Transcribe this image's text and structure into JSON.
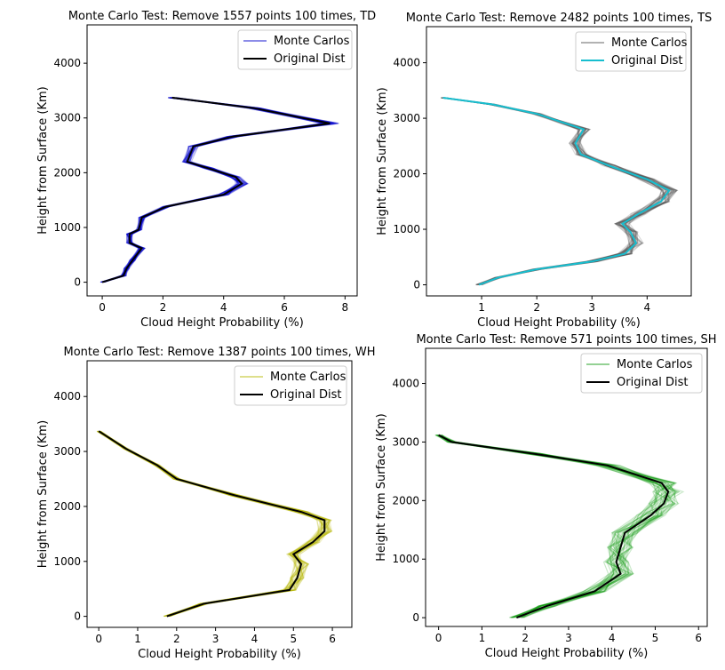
{
  "chart_data": [
    {
      "type": "line",
      "title": "Monte Carlo Test: Remove 1557 points 100 times, TD",
      "xlabel": "Cloud Height Probability (%)",
      "ylabel": "Height from Surface (Km)",
      "xlim": [
        -0.5,
        8.4
      ],
      "ylim": [
        -250,
        4700
      ],
      "xticks": [
        0,
        2,
        4,
        6,
        8
      ],
      "yticks": [
        0,
        1000,
        2000,
        3000,
        4000
      ],
      "grid": false,
      "legend_position": "top-right",
      "series": [
        {
          "name": "Monte Carlos",
          "color": "#0000cc",
          "role": "ensemble",
          "spread": 0.18
        },
        {
          "name": "Original Dist",
          "color": "#000000",
          "role": "original",
          "points": [
            [
              0,
              0
            ],
            [
              0.7,
              120
            ],
            [
              0.8,
              250
            ],
            [
              1.0,
              400
            ],
            [
              1.3,
              620
            ],
            [
              0.9,
              720
            ],
            [
              0.9,
              880
            ],
            [
              1.2,
              960
            ],
            [
              1.3,
              1180
            ],
            [
              2.1,
              1380
            ],
            [
              4.0,
              1600
            ],
            [
              4.6,
              1800
            ],
            [
              4.4,
              1920
            ],
            [
              3.5,
              2080
            ],
            [
              2.8,
              2200
            ],
            [
              3.0,
              2480
            ],
            [
              4.3,
              2660
            ],
            [
              7.5,
              2900
            ],
            [
              5.0,
              3180
            ],
            [
              2.3,
              3370
            ]
          ]
        }
      ]
    },
    {
      "type": "line",
      "title": "Monte Carlo Test: Remove 2482 points 100 times, TS",
      "xlabel": "Cloud Height Probability (%)",
      "ylabel": "Height from Surface (Km)",
      "xlim": [
        0,
        4.8
      ],
      "ylim": [
        -200,
        4650
      ],
      "xticks": [
        1,
        2,
        3,
        4
      ],
      "yticks": [
        0,
        1000,
        2000,
        3000,
        4000
      ],
      "grid": false,
      "legend_position": "top-right",
      "series": [
        {
          "name": "Monte Carlos",
          "color": "#555555",
          "role": "ensemble",
          "spread": 0.09
        },
        {
          "name": "Original Dist",
          "color": "#17becf",
          "role": "original",
          "points": [
            [
              0.95,
              0
            ],
            [
              1.3,
              130
            ],
            [
              2.0,
              280
            ],
            [
              3.0,
              420
            ],
            [
              3.6,
              560
            ],
            [
              3.8,
              750
            ],
            [
              3.7,
              950
            ],
            [
              3.55,
              1100
            ],
            [
              3.85,
              1280
            ],
            [
              4.25,
              1500
            ],
            [
              4.4,
              1700
            ],
            [
              4.0,
              1900
            ],
            [
              3.3,
              2150
            ],
            [
              2.8,
              2350
            ],
            [
              2.7,
              2550
            ],
            [
              2.85,
              2800
            ],
            [
              2.0,
              3080
            ],
            [
              1.2,
              3250
            ],
            [
              0.3,
              3370
            ]
          ]
        }
      ]
    },
    {
      "type": "line",
      "title": "Monte Carlo Test: Remove 1387 points 100 times, WH",
      "xlabel": "Cloud Height Probability (%)",
      "ylabel": "Height from Surface (Km)",
      "xlim": [
        -0.3,
        6.5
      ],
      "ylim": [
        -200,
        4650
      ],
      "xticks": [
        0,
        1,
        2,
        3,
        4,
        5,
        6
      ],
      "yticks": [
        0,
        1000,
        2000,
        3000,
        4000
      ],
      "grid": false,
      "legend_position": "top-right",
      "series": [
        {
          "name": "Monte Carlos",
          "color": "#b5b800",
          "role": "ensemble",
          "spread": 0.12
        },
        {
          "name": "Original Dist",
          "color": "#000000",
          "role": "original",
          "points": [
            [
              1.75,
              0
            ],
            [
              2.7,
              230
            ],
            [
              4.9,
              480
            ],
            [
              5.1,
              700
            ],
            [
              5.2,
              950
            ],
            [
              5.0,
              1130
            ],
            [
              5.5,
              1350
            ],
            [
              5.8,
              1550
            ],
            [
              5.8,
              1750
            ],
            [
              5.2,
              1900
            ],
            [
              3.5,
              2200
            ],
            [
              2.0,
              2500
            ],
            [
              1.5,
              2750
            ],
            [
              0.7,
              3050
            ],
            [
              0.0,
              3370
            ]
          ]
        }
      ]
    },
    {
      "type": "line",
      "title": "Monte Carlo Test: Remove 571 points 100 times, SH",
      "xlabel": "Cloud Height Probability (%)",
      "ylabel": "Height from Surface (Km)",
      "xlim": [
        -0.3,
        6.2
      ],
      "ylim": [
        -150,
        4600
      ],
      "xticks": [
        0,
        1,
        2,
        3,
        4,
        5,
        6
      ],
      "yticks": [
        0,
        1000,
        2000,
        3000,
        4000
      ],
      "grid": false,
      "legend_position": "top-right",
      "series": [
        {
          "name": "Monte Carlos",
          "color": "#119911",
          "role": "ensemble",
          "spread": 0.22
        },
        {
          "name": "Original Dist",
          "color": "#000000",
          "role": "original",
          "points": [
            [
              1.8,
              0
            ],
            [
              2.5,
              200
            ],
            [
              3.6,
              450
            ],
            [
              4.2,
              750
            ],
            [
              4.1,
              950
            ],
            [
              4.2,
              1200
            ],
            [
              4.3,
              1450
            ],
            [
              4.9,
              1750
            ],
            [
              5.2,
              1950
            ],
            [
              5.3,
              2150
            ],
            [
              5.15,
              2300
            ],
            [
              3.9,
              2600
            ],
            [
              2.2,
              2800
            ],
            [
              0.3,
              3000
            ],
            [
              0.0,
              3120
            ]
          ]
        }
      ]
    }
  ]
}
